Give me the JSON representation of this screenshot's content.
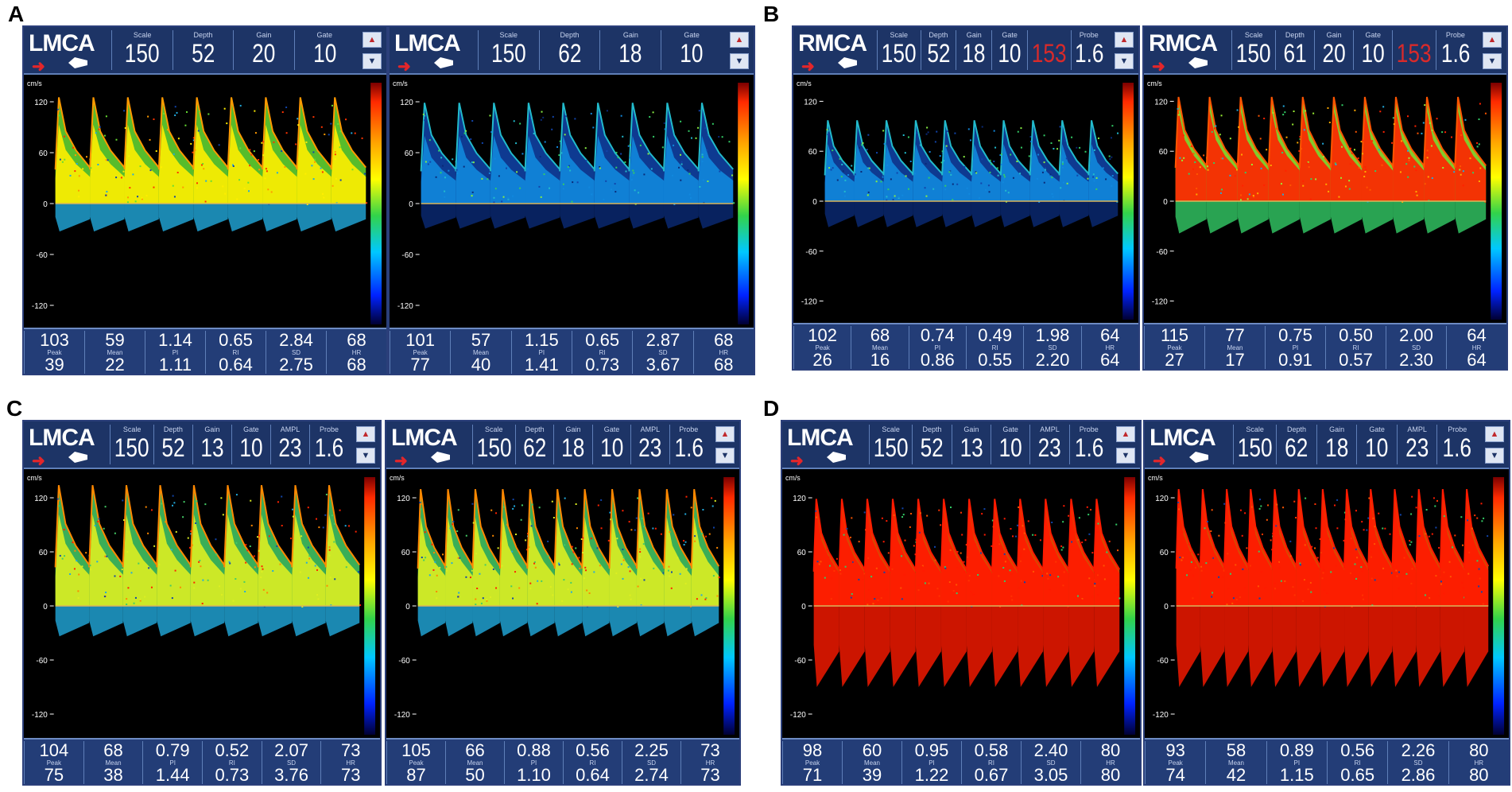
{
  "panels": [
    {
      "letter": "A",
      "screens": [
        {
          "vessel": "LMCA",
          "params": [
            {
              "label": "Scale",
              "value": "150"
            },
            {
              "label": "Depth",
              "value": "52"
            },
            {
              "label": "Gain",
              "value": "20"
            },
            {
              "label": "Gate",
              "value": "10"
            }
          ],
          "yticks": [
            "120",
            "60",
            "0",
            "-60",
            "-120"
          ],
          "unit": "cm/s",
          "row1": [
            "103",
            "59",
            "1.14",
            "0.65",
            "2.84",
            "68"
          ],
          "labels": [
            "Peak",
            "Mean",
            "PI",
            "RI",
            "SD",
            "HR"
          ],
          "row2": [
            "39",
            "22",
            "1.11",
            "0.64",
            "2.75",
            "68"
          ]
        },
        {
          "vessel": "LMCA",
          "params": [
            {
              "label": "Scale",
              "value": "150"
            },
            {
              "label": "Depth",
              "value": "62"
            },
            {
              "label": "Gain",
              "value": "18"
            },
            {
              "label": "Gate",
              "value": "10"
            }
          ],
          "yticks": [
            "120",
            "60",
            "0",
            "-60",
            "-120"
          ],
          "unit": "cm/s",
          "row1": [
            "101",
            "57",
            "1.15",
            "0.65",
            "2.87",
            "68"
          ],
          "labels": [
            "Peak",
            "Mean",
            "PI",
            "RI",
            "SD",
            "HR"
          ],
          "row2": [
            "77",
            "40",
            "1.41",
            "0.73",
            "3.67",
            "68"
          ]
        }
      ]
    },
    {
      "letter": "B",
      "screens": [
        {
          "vessel": "RMCA",
          "params": [
            {
              "label": "Scale",
              "value": "150"
            },
            {
              "label": "Depth",
              "value": "52"
            },
            {
              "label": "Gain",
              "value": "18"
            },
            {
              "label": "Gate",
              "value": "10"
            },
            {
              "label": "",
              "value": "153"
            },
            {
              "label": "Probe",
              "value": "1.6"
            }
          ],
          "yticks": [
            "120",
            "60",
            "0",
            "-60",
            "-120"
          ],
          "unit": "cm/s",
          "row1": [
            "102",
            "68",
            "0.74",
            "0.49",
            "1.98",
            "64"
          ],
          "labels": [
            "Peak",
            "Mean",
            "PI",
            "RI",
            "SD",
            "HR"
          ],
          "row2": [
            "26",
            "16",
            "0.86",
            "0.55",
            "2.20",
            "64"
          ]
        },
        {
          "vessel": "RMCA",
          "params": [
            {
              "label": "Scale",
              "value": "150"
            },
            {
              "label": "Depth",
              "value": "61"
            },
            {
              "label": "Gain",
              "value": "20"
            },
            {
              "label": "Gate",
              "value": "10"
            },
            {
              "label": "",
              "value": "153"
            },
            {
              "label": "Probe",
              "value": "1.6"
            }
          ],
          "yticks": [
            "120",
            "60",
            "0",
            "-60",
            "-120"
          ],
          "unit": "cm/s",
          "row1": [
            "115",
            "77",
            "0.75",
            "0.50",
            "2.00",
            "64"
          ],
          "labels": [
            "Peak",
            "Mean",
            "PI",
            "RI",
            "SD",
            "HR"
          ],
          "row2": [
            "27",
            "17",
            "0.91",
            "0.57",
            "2.30",
            "64"
          ]
        }
      ]
    },
    {
      "letter": "C",
      "screens": [
        {
          "vessel": "LMCA",
          "params": [
            {
              "label": "Scale",
              "value": "150"
            },
            {
              "label": "Depth",
              "value": "52"
            },
            {
              "label": "Gain",
              "value": "13"
            },
            {
              "label": "Gate",
              "value": "10"
            },
            {
              "label": "AMPL",
              "value": "23"
            },
            {
              "label": "Probe",
              "value": "1.6"
            }
          ],
          "yticks": [
            "120",
            "60",
            "0",
            "-60",
            "-120"
          ],
          "unit": "cm/s",
          "row1": [
            "104",
            "68",
            "0.79",
            "0.52",
            "2.07",
            "73"
          ],
          "labels": [
            "Peak",
            "Mean",
            "PI",
            "RI",
            "SD",
            "HR"
          ],
          "row2": [
            "75",
            "38",
            "1.44",
            "0.73",
            "3.76",
            "73"
          ]
        },
        {
          "vessel": "LMCA",
          "params": [
            {
              "label": "Scale",
              "value": "150"
            },
            {
              "label": "Depth",
              "value": "62"
            },
            {
              "label": "Gain",
              "value": "18"
            },
            {
              "label": "Gate",
              "value": "10"
            },
            {
              "label": "AMPL",
              "value": "23"
            },
            {
              "label": "Probe",
              "value": "1.6"
            }
          ],
          "yticks": [
            "120",
            "60",
            "0",
            "-60",
            "-120"
          ],
          "unit": "cm/s",
          "row1": [
            "105",
            "66",
            "0.88",
            "0.56",
            "2.25",
            "73"
          ],
          "labels": [
            "Peak",
            "Mean",
            "PI",
            "RI",
            "SD",
            "HR"
          ],
          "row2": [
            "87",
            "50",
            "1.10",
            "0.64",
            "2.74",
            "73"
          ]
        }
      ]
    },
    {
      "letter": "D",
      "screens": [
        {
          "vessel": "LMCA",
          "params": [
            {
              "label": "Scale",
              "value": "150"
            },
            {
              "label": "Depth",
              "value": "52"
            },
            {
              "label": "Gain",
              "value": "13"
            },
            {
              "label": "Gate",
              "value": "10"
            },
            {
              "label": "AMPL",
              "value": "23"
            },
            {
              "label": "Probe",
              "value": "1.6"
            }
          ],
          "yticks": [
            "120",
            "60",
            "0",
            "-60",
            "-120"
          ],
          "unit": "cm/s",
          "row1": [
            "98",
            "60",
            "0.95",
            "0.58",
            "2.40",
            "80"
          ],
          "labels": [
            "Peak",
            "Mean",
            "PI",
            "RI",
            "SD",
            "HR"
          ],
          "row2": [
            "71",
            "39",
            "1.22",
            "0.67",
            "3.05",
            "80"
          ]
        },
        {
          "vessel": "LMCA",
          "params": [
            {
              "label": "Scale",
              "value": "150"
            },
            {
              "label": "Depth",
              "value": "62"
            },
            {
              "label": "Gain",
              "value": "18"
            },
            {
              "label": "Gate",
              "value": "10"
            },
            {
              "label": "AMPL",
              "value": "23"
            },
            {
              "label": "Probe",
              "value": "1.6"
            }
          ],
          "yticks": [
            "120",
            "60",
            "0",
            "-60",
            "-120"
          ],
          "unit": "cm/s",
          "row1": [
            "93",
            "58",
            "0.89",
            "0.56",
            "2.26",
            "80"
          ],
          "labels": [
            "Peak",
            "Mean",
            "PI",
            "RI",
            "SD",
            "HR"
          ],
          "row2": [
            "74",
            "42",
            "1.15",
            "0.65",
            "2.86",
            "80"
          ]
        }
      ]
    }
  ],
  "spectra": [
    {
      "style": "warm",
      "beats": 9,
      "peak": 0.58,
      "density": 0.55
    },
    {
      "style": "cool",
      "beats": 9,
      "peak": 0.55,
      "density": 0.35
    },
    {
      "style": "cool",
      "beats": 10,
      "peak": 0.45,
      "density": 0.45
    },
    {
      "style": "hot",
      "beats": 10,
      "peak": 0.58,
      "density": 0.9
    },
    {
      "style": "mixed",
      "beats": 9,
      "peak": 0.62,
      "density": 0.6
    },
    {
      "style": "mixed",
      "beats": 11,
      "peak": 0.6,
      "density": 0.6
    },
    {
      "style": "red",
      "beats": 12,
      "peak": 0.55,
      "density": 1.0
    },
    {
      "style": "red",
      "beats": 13,
      "peak": 0.6,
      "density": 1.0
    }
  ]
}
